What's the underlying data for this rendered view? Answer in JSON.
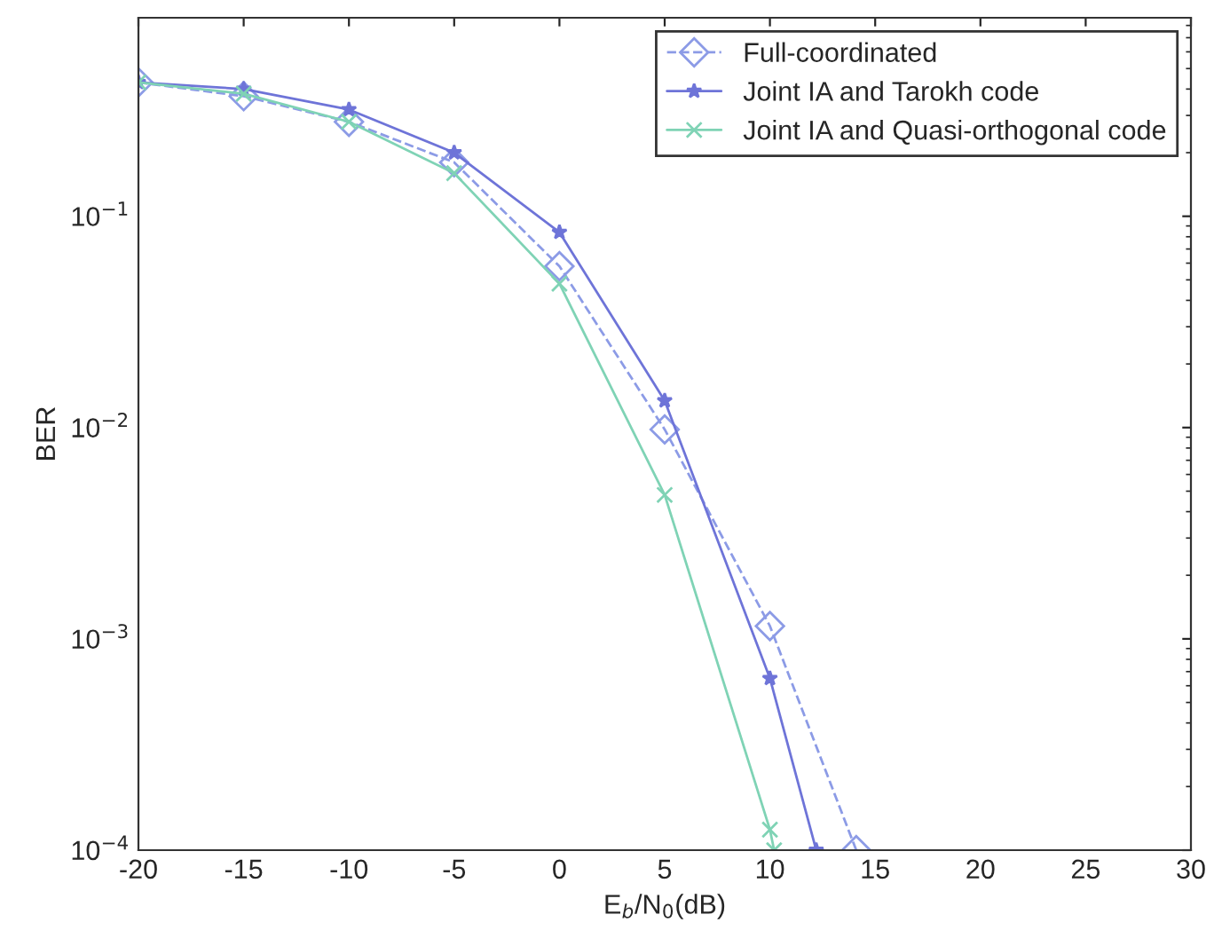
{
  "chart_data": {
    "type": "line",
    "xlabel": "E$_{b}$/N$_{0}$(dB)",
    "ylabel": "BER",
    "log": "y",
    "xlim": [
      -20,
      30
    ],
    "xticks": [
      -20,
      -15,
      -10,
      -5,
      0,
      5,
      10,
      15,
      20,
      25,
      30
    ],
    "ylim": [
      0.0001,
      0.87
    ],
    "yticks": [
      {
        "value": 0.0001,
        "label": "10$^{−4}$"
      },
      {
        "value": 0.001,
        "label": "10$^{−3}$"
      },
      {
        "value": 0.01,
        "label": "10$^{−2}$"
      },
      {
        "value": 0.1,
        "label": "10$^{−1}$"
      }
    ],
    "grid": false,
    "legend": "top right",
    "series": [
      {
        "name": "Full-coordinated",
        "color": "#8c9be6",
        "marker": "diamond",
        "line_style": "dashed",
        "x": [
          -20,
          -15,
          -10,
          -5,
          0,
          5,
          10,
          14.1
        ],
        "values": [
          0.43,
          0.37,
          0.28,
          0.18,
          0.058,
          0.0098,
          0.00115,
          0.0001
        ]
      },
      {
        "name": "Joint IA and Tarokh code",
        "color": "#6e74d8",
        "marker": "star",
        "line_style": "solid",
        "x": [
          -20,
          -15,
          -10,
          -5,
          0,
          5,
          10,
          12.2
        ],
        "values": [
          0.43,
          0.4,
          0.32,
          0.2,
          0.084,
          0.0134,
          0.00065,
          0.0001
        ]
      },
      {
        "name": "Joint IA and Quasi-orthogonal code",
        "color": "#7fd3b5",
        "marker": "cross",
        "line_style": "solid",
        "x": [
          -20,
          -15,
          -10,
          -5,
          0,
          5,
          10,
          10.2
        ],
        "values": [
          0.43,
          0.38,
          0.28,
          0.16,
          0.048,
          0.0048,
          0.000125,
          0.0001
        ]
      }
    ]
  }
}
